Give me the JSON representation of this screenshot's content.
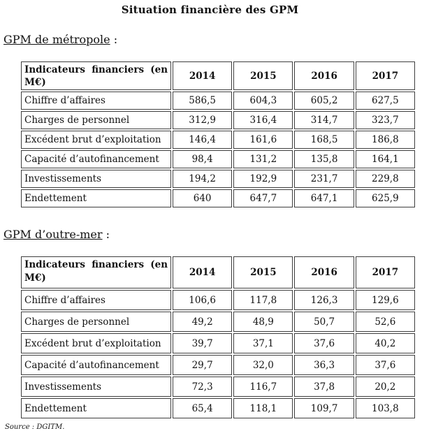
{
  "document": {
    "title": "Situation financière des GPM",
    "source_note": "Source : DGITM."
  },
  "sections": [
    {
      "heading": "GPM de métropole",
      "heading_punct": " :",
      "table": {
        "col1_header": "Indicateurs financiers (en M€)",
        "years": [
          "2014",
          "2015",
          "2016",
          "2017"
        ],
        "rows": [
          {
            "label": "Chiffre d’affaires",
            "values": [
              "586,5",
              "604,3",
              "605,2",
              "627,5"
            ]
          },
          {
            "label": "Charges de personnel",
            "values": [
              "312,9",
              "316,4",
              "314,7",
              "323,7"
            ]
          },
          {
            "label": "Excédent brut d’exploitation",
            "values": [
              "146,4",
              "161,6",
              "168,5",
              "186,8"
            ]
          },
          {
            "label": "Capacité d’autofinancement",
            "values": [
              "98,4",
              "131,2",
              "135,8",
              "164,1"
            ]
          },
          {
            "label": "Investissements",
            "values": [
              "194,2",
              "192,9",
              "231,7",
              "229,8"
            ]
          },
          {
            "label": "Endettement",
            "values": [
              "640",
              "647,7",
              "647,1",
              "625,9"
            ]
          }
        ]
      }
    },
    {
      "heading": "GPM d’outre-mer",
      "heading_punct": " :",
      "table": {
        "col1_header": "Indicateurs financiers (en M€)",
        "years": [
          "2014",
          "2015",
          "2016",
          "2017"
        ],
        "rows": [
          {
            "label": "Chiffre d’affaires",
            "values": [
              "106,6",
              "117,8",
              "126,3",
              "129,6"
            ]
          },
          {
            "label": "Charges de personnel",
            "values": [
              "49,2",
              "48,9",
              "50,7",
              "52,6"
            ]
          },
          {
            "label": "Excédent brut d’exploitation",
            "values": [
              "39,7",
              "37,1",
              "37,6",
              "40,2"
            ]
          },
          {
            "label": "Capacité d’autofinancement",
            "values": [
              "29,7",
              "32,0",
              "36,3",
              "37,6"
            ]
          },
          {
            "label": "Investissements",
            "values": [
              "72,3",
              "116,7",
              "37,8",
              "20,2"
            ]
          },
          {
            "label": "Endettement",
            "values": [
              "65,4",
              "118,1",
              "109,7",
              "103,8"
            ]
          }
        ]
      }
    }
  ]
}
